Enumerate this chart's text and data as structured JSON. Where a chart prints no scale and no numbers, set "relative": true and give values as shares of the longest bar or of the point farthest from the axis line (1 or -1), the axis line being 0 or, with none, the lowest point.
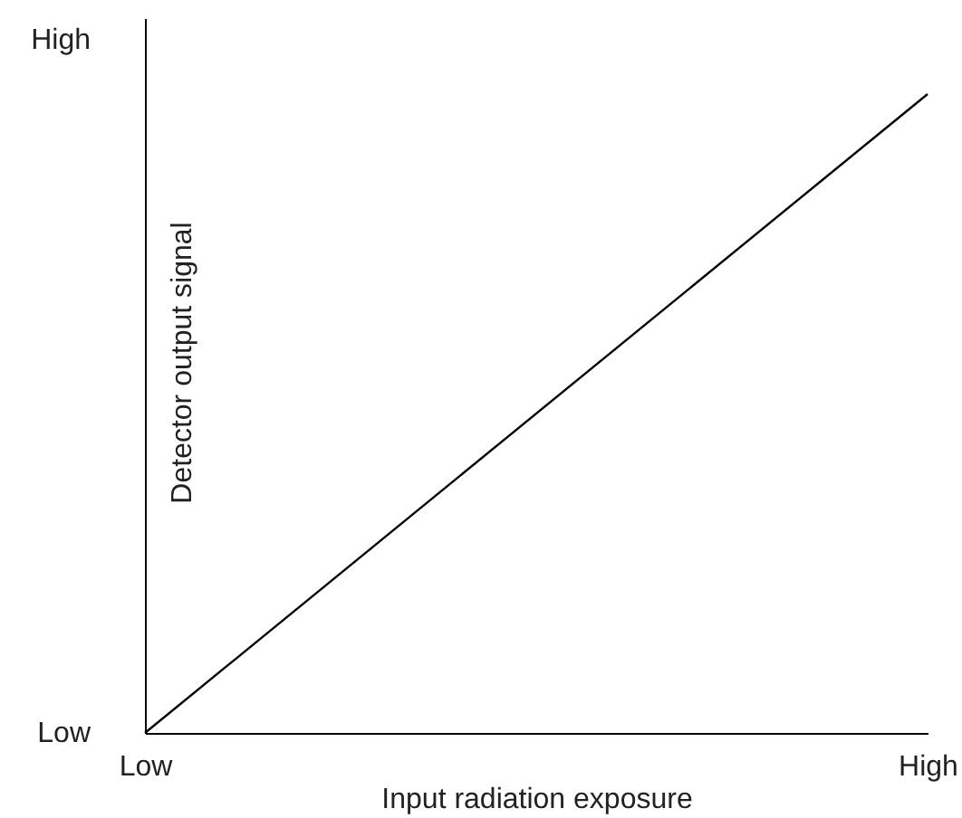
{
  "chart_data": {
    "type": "line",
    "xlabel": "Input radiation exposure",
    "ylabel": "Detector output signal",
    "categories": [
      "Low",
      "High"
    ],
    "series": [
      {
        "color": "#000000",
        "values": [
          0,
          1
        ]
      }
    ],
    "relative": true,
    "annotations": [
      "High",
      "Low"
    ],
    "marker": "none",
    "line_style": "solid"
  }
}
